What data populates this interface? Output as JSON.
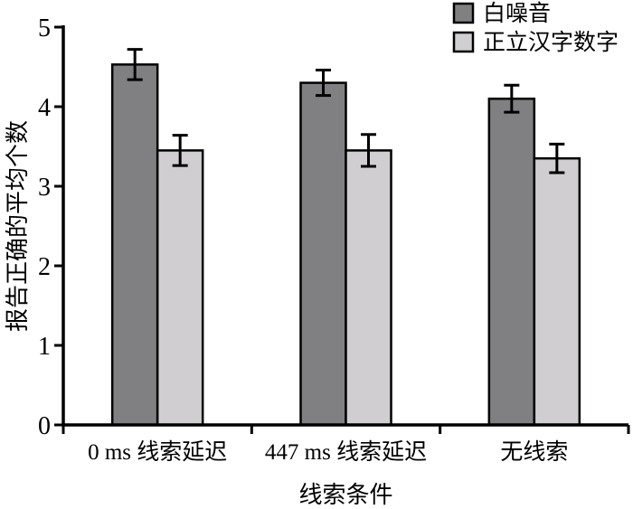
{
  "chart_data": {
    "type": "bar",
    "title": "",
    "categories": [
      "0 ms 线索延迟",
      "447 ms 线索延迟",
      "无线索"
    ],
    "series": [
      {
        "name": "白噪音",
        "values": [
          4.53,
          4.3,
          4.1
        ],
        "errors": [
          0.19,
          0.16,
          0.17
        ],
        "color": "#808083"
      },
      {
        "name": "正立汉字数字",
        "values": [
          3.45,
          3.45,
          3.35
        ],
        "errors": [
          0.19,
          0.2,
          0.18
        ],
        "color": "#d1ced1"
      }
    ],
    "xlabel": "线索条件",
    "ylabel": "报告正确的平均个数",
    "ylim": [
      0,
      5
    ],
    "yticks": [
      0,
      1,
      2,
      3,
      4,
      5
    ],
    "grid": false,
    "legend_position": "top-right",
    "bar_outline_color": "#000000",
    "error_bar_color": "#000000",
    "axis_color": "#000000",
    "background": "#ffffff"
  }
}
